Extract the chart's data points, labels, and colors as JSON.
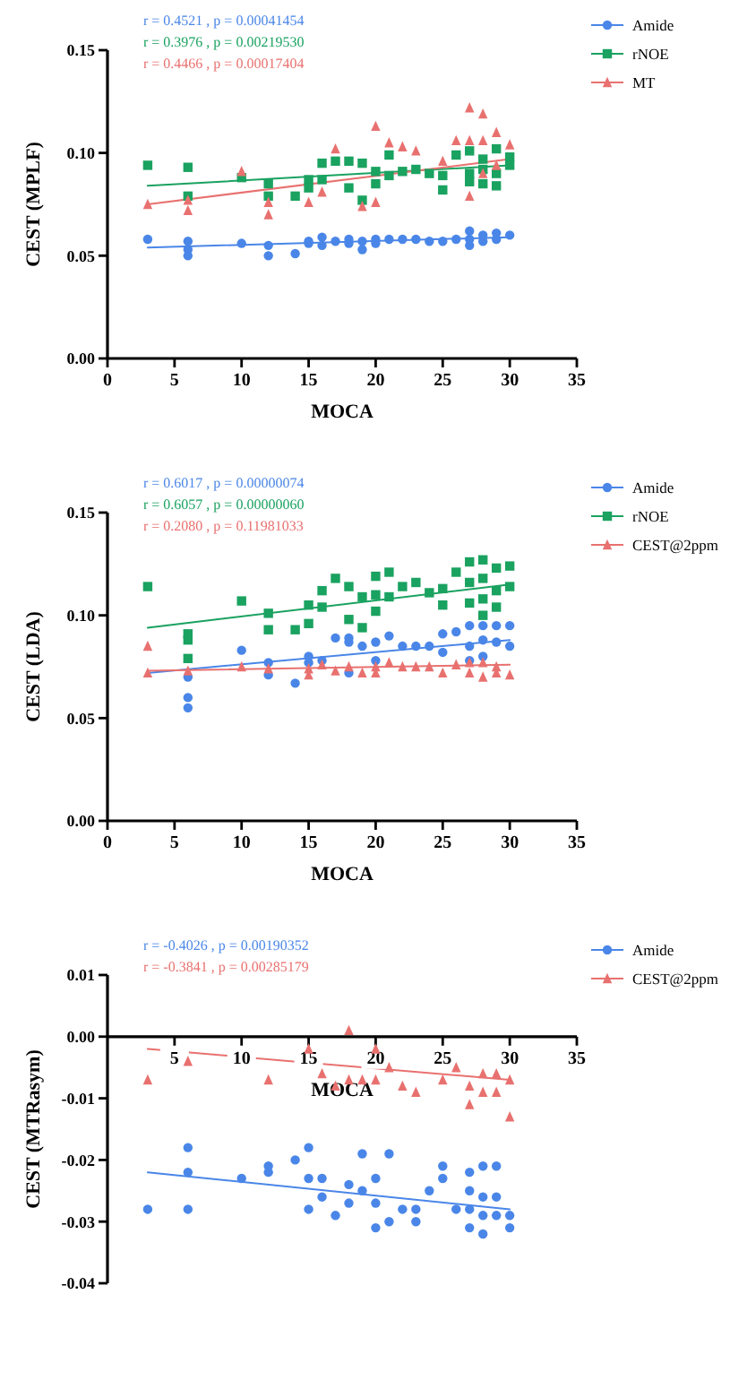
{
  "chart_data": [
    {
      "type": "scatter",
      "xlabel": "MOCA",
      "ylabel": "CEST (MPLF)",
      "xlim": [
        0,
        35
      ],
      "ylim": [
        0,
        0.15
      ],
      "xticks": [
        0,
        5,
        10,
        15,
        20,
        25,
        30,
        35
      ],
      "yticks": [
        {
          "value": 0,
          "label": "0.00"
        },
        {
          "value": 0.05,
          "label": "0.05"
        },
        {
          "value": 0.1,
          "label": "0.10"
        },
        {
          "value": 0.15,
          "label": "0.15"
        }
      ],
      "legend": "top right",
      "grid": false,
      "annotations": [
        "r = 0.4521 , p = 0.00041454",
        "r = 0.3976 , p = 0.00219530",
        "r = 0.4466 , p = 0.00017404"
      ],
      "series": [
        {
          "name": "Amide",
          "color": "#4a86e8",
          "marker": "circle",
          "x": [
            3,
            6,
            6,
            6,
            10,
            12,
            12,
            14,
            15,
            15,
            16,
            16,
            17,
            18,
            18,
            19,
            19,
            20,
            20,
            21,
            22,
            23,
            24,
            25,
            26,
            27,
            27,
            27,
            28,
            28,
            29,
            29,
            30
          ],
          "values": [
            0.058,
            0.057,
            0.053,
            0.05,
            0.056,
            0.055,
            0.05,
            0.051,
            0.056,
            0.057,
            0.059,
            0.055,
            0.057,
            0.058,
            0.056,
            0.057,
            0.053,
            0.058,
            0.056,
            0.058,
            0.058,
            0.058,
            0.057,
            0.057,
            0.058,
            0.062,
            0.058,
            0.055,
            0.06,
            0.057,
            0.061,
            0.058,
            0.06
          ]
        },
        {
          "name": "rNOE",
          "color": "#1aa260",
          "marker": "square",
          "x": [
            3,
            6,
            6,
            10,
            12,
            12,
            14,
            15,
            15,
            16,
            16,
            17,
            18,
            18,
            19,
            19,
            20,
            20,
            21,
            21,
            22,
            23,
            24,
            25,
            25,
            26,
            27,
            27,
            27,
            28,
            28,
            28,
            29,
            29,
            29,
            30,
            30
          ],
          "values": [
            0.094,
            0.093,
            0.079,
            0.088,
            0.085,
            0.079,
            0.079,
            0.087,
            0.083,
            0.095,
            0.087,
            0.096,
            0.096,
            0.083,
            0.095,
            0.077,
            0.091,
            0.085,
            0.099,
            0.089,
            0.091,
            0.092,
            0.09,
            0.089,
            0.082,
            0.099,
            0.101,
            0.09,
            0.086,
            0.097,
            0.092,
            0.085,
            0.102,
            0.09,
            0.084,
            0.098,
            0.094
          ]
        },
        {
          "name": "MT",
          "color": "#e8716f",
          "marker": "triangle",
          "x": [
            3,
            6,
            6,
            10,
            12,
            12,
            15,
            16,
            17,
            19,
            20,
            20,
            21,
            22,
            23,
            25,
            26,
            27,
            27,
            27,
            28,
            28,
            28,
            29,
            29,
            30
          ],
          "values": [
            0.075,
            0.072,
            0.077,
            0.091,
            0.07,
            0.076,
            0.076,
            0.081,
            0.102,
            0.074,
            0.113,
            0.076,
            0.105,
            0.103,
            0.101,
            0.096,
            0.106,
            0.122,
            0.106,
            0.079,
            0.119,
            0.106,
            0.09,
            0.11,
            0.094,
            0.104
          ]
        },
        {
          "type": "line",
          "color": "#4a86e8",
          "marker": "none",
          "x": [
            3,
            30
          ],
          "values": [
            0.054,
            0.059
          ]
        },
        {
          "type": "line",
          "color": "#1aa260",
          "marker": "none",
          "x": [
            3,
            30
          ],
          "values": [
            0.084,
            0.094
          ]
        },
        {
          "type": "line",
          "color": "#e8716f",
          "marker": "none",
          "x": [
            3,
            30
          ],
          "values": [
            0.075,
            0.097
          ]
        }
      ]
    },
    {
      "type": "scatter",
      "xlabel": "MOCA",
      "ylabel": "CEST (LDA)",
      "xlim": [
        0,
        35
      ],
      "ylim": [
        0,
        0.15
      ],
      "xticks": [
        0,
        5,
        10,
        15,
        20,
        25,
        30,
        35
      ],
      "yticks": [
        {
          "value": 0,
          "label": "0.00"
        },
        {
          "value": 0.05,
          "label": "0.05"
        },
        {
          "value": 0.1,
          "label": "0.10"
        },
        {
          "value": 0.15,
          "label": "0.15"
        }
      ],
      "legend": "top right",
      "grid": false,
      "annotations": [
        "r = 0.6017 , p = 0.00000074",
        "r = 0.6057 , p = 0.00000060",
        "r = 0.2080 , p = 0.11981033"
      ],
      "series": [
        {
          "name": "Amide",
          "color": "#4a86e8",
          "marker": "circle",
          "x": [
            6,
            6,
            6,
            10,
            12,
            12,
            14,
            15,
            15,
            16,
            17,
            18,
            18,
            18,
            19,
            20,
            20,
            21,
            22,
            23,
            24,
            25,
            25,
            26,
            27,
            27,
            27,
            28,
            28,
            28,
            29,
            29,
            30,
            30
          ],
          "values": [
            0.07,
            0.06,
            0.055,
            0.083,
            0.077,
            0.071,
            0.067,
            0.08,
            0.077,
            0.078,
            0.089,
            0.089,
            0.087,
            0.072,
            0.085,
            0.087,
            0.078,
            0.09,
            0.085,
            0.085,
            0.085,
            0.091,
            0.082,
            0.092,
            0.095,
            0.085,
            0.078,
            0.095,
            0.088,
            0.08,
            0.095,
            0.087,
            0.095,
            0.085
          ]
        },
        {
          "name": "rNOE",
          "color": "#1aa260",
          "marker": "square",
          "x": [
            3,
            6,
            6,
            6,
            10,
            12,
            12,
            14,
            15,
            15,
            16,
            16,
            17,
            18,
            18,
            19,
            19,
            20,
            20,
            20,
            21,
            21,
            22,
            23,
            24,
            25,
            25,
            26,
            27,
            27,
            27,
            28,
            28,
            28,
            28,
            29,
            29,
            29,
            30,
            30
          ],
          "values": [
            0.114,
            0.091,
            0.088,
            0.079,
            0.107,
            0.101,
            0.093,
            0.093,
            0.105,
            0.096,
            0.112,
            0.104,
            0.118,
            0.114,
            0.098,
            0.094,
            0.109,
            0.119,
            0.11,
            0.102,
            0.121,
            0.109,
            0.114,
            0.116,
            0.111,
            0.113,
            0.105,
            0.121,
            0.126,
            0.116,
            0.106,
            0.127,
            0.118,
            0.108,
            0.1,
            0.123,
            0.112,
            0.104,
            0.124,
            0.114
          ]
        },
        {
          "name": "CEST@2ppm",
          "color": "#e8716f",
          "marker": "triangle",
          "x": [
            3,
            3,
            6,
            10,
            12,
            15,
            15,
            16,
            17,
            18,
            19,
            20,
            20,
            21,
            22,
            23,
            24,
            25,
            26,
            27,
            27,
            28,
            28,
            29,
            29,
            30
          ],
          "values": [
            0.085,
            0.072,
            0.073,
            0.075,
            0.074,
            0.074,
            0.071,
            0.076,
            0.073,
            0.075,
            0.072,
            0.075,
            0.072,
            0.077,
            0.075,
            0.075,
            0.075,
            0.072,
            0.076,
            0.077,
            0.072,
            0.077,
            0.07,
            0.075,
            0.072,
            0.071
          ]
        },
        {
          "type": "line",
          "color": "#4a86e8",
          "marker": "none",
          "x": [
            3,
            30
          ],
          "values": [
            0.072,
            0.088
          ]
        },
        {
          "type": "line",
          "color": "#1aa260",
          "marker": "none",
          "x": [
            3,
            30
          ],
          "values": [
            0.094,
            0.115
          ]
        },
        {
          "type": "line",
          "color": "#e8716f",
          "marker": "none",
          "x": [
            3,
            30
          ],
          "values": [
            0.073,
            0.076
          ]
        }
      ]
    },
    {
      "type": "scatter",
      "xlabel": "MOCA",
      "ylabel": "CEST (MTRasym)",
      "xlim": [
        0,
        35
      ],
      "ylim": [
        -0.04,
        0.01
      ],
      "xticks": [
        5,
        10,
        15,
        20,
        25,
        30,
        35
      ],
      "yticks": [
        {
          "value": -0.04,
          "label": "-0.04"
        },
        {
          "value": -0.03,
          "label": "-0.03"
        },
        {
          "value": -0.02,
          "label": "-0.02"
        },
        {
          "value": -0.01,
          "label": "-0.01"
        },
        {
          "value": 0,
          "label": "0.00"
        },
        {
          "value": 0.01,
          "label": "0.01"
        }
      ],
      "legend": "top right",
      "grid": false,
      "annotations": [
        "r = -0.4026 , p = 0.00190352",
        "r = -0.3841 , p = 0.00285179"
      ],
      "series": [
        {
          "name": "Amide",
          "color": "#4a86e8",
          "marker": "circle",
          "x": [
            3,
            6,
            6,
            6,
            10,
            12,
            12,
            14,
            15,
            15,
            15,
            16,
            16,
            17,
            18,
            18,
            19,
            19,
            20,
            20,
            20,
            21,
            21,
            22,
            23,
            23,
            24,
            25,
            25,
            26,
            27,
            27,
            27,
            27,
            28,
            28,
            28,
            28,
            29,
            29,
            29,
            30,
            30
          ],
          "values": [
            -0.028,
            -0.018,
            -0.022,
            -0.028,
            -0.023,
            -0.021,
            -0.022,
            -0.02,
            -0.018,
            -0.023,
            -0.028,
            -0.023,
            -0.026,
            -0.029,
            -0.024,
            -0.027,
            -0.019,
            -0.025,
            -0.023,
            -0.027,
            -0.031,
            -0.019,
            -0.03,
            -0.028,
            -0.028,
            -0.03,
            -0.025,
            -0.021,
            -0.023,
            -0.028,
            -0.022,
            -0.025,
            -0.028,
            -0.031,
            -0.021,
            -0.026,
            -0.029,
            -0.032,
            -0.021,
            -0.026,
            -0.029,
            -0.029,
            -0.031
          ]
        },
        {
          "name": "CEST@2ppm",
          "color": "#e8716f",
          "marker": "triangle",
          "x": [
            3,
            6,
            12,
            15,
            16,
            17,
            18,
            18,
            19,
            20,
            20,
            21,
            22,
            23,
            25,
            26,
            27,
            27,
            28,
            28,
            29,
            29,
            30,
            30
          ],
          "values": [
            -0.007,
            -0.004,
            -0.007,
            -0.002,
            -0.006,
            -0.008,
            0.001,
            -0.007,
            -0.007,
            -0.002,
            -0.007,
            -0.005,
            -0.008,
            -0.009,
            -0.007,
            -0.005,
            -0.008,
            -0.011,
            -0.006,
            -0.009,
            -0.006,
            -0.009,
            -0.007,
            -0.013
          ]
        },
        {
          "type": "line",
          "color": "#4a86e8",
          "marker": "none",
          "x": [
            3,
            30
          ],
          "values": [
            -0.022,
            -0.028
          ]
        },
        {
          "type": "line",
          "color": "#e8716f",
          "marker": "none",
          "x": [
            3,
            30
          ],
          "values": [
            -0.002,
            -0.007
          ]
        }
      ]
    }
  ]
}
